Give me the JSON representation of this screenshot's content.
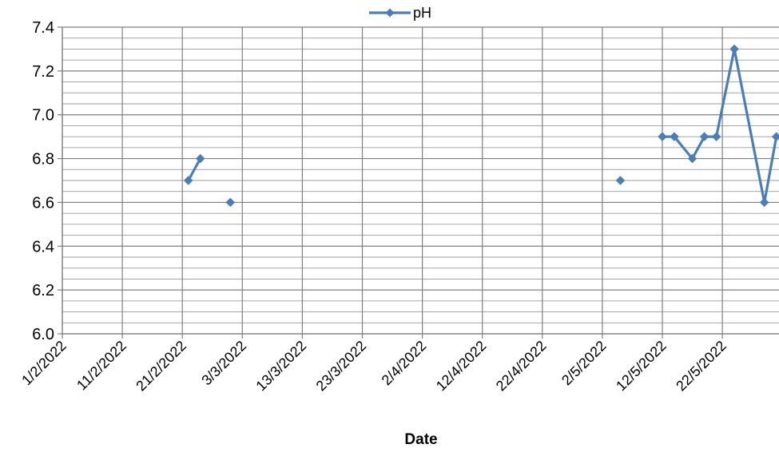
{
  "chart_data": {
    "type": "line",
    "title": "",
    "xlabel": "Date",
    "ylabel": "",
    "ylim": [
      6.0,
      7.4
    ],
    "y_ticks": [
      "6.0",
      "6.2",
      "6.4",
      "6.6",
      "6.8",
      "7.0",
      "7.2",
      "7.4"
    ],
    "x_tick_labels": [
      "1/2/2022",
      "11/2/2022",
      "21/2/2022",
      "3/3/2022",
      "13/3/2022",
      "23/3/2022",
      "2/4/2022",
      "12/4/2022",
      "22/4/2022",
      "2/5/2022",
      "12/5/2022",
      "22/5/2022"
    ],
    "x_tick_dates": [
      "2022-02-01",
      "2022-02-11",
      "2022-02-21",
      "2022-03-03",
      "2022-03-13",
      "2022-03-23",
      "2022-04-02",
      "2022-04-12",
      "2022-04-22",
      "2022-05-02",
      "2022-05-12",
      "2022-05-22"
    ],
    "xlim": [
      "2022-02-01",
      "2022-05-31"
    ],
    "grid": true,
    "legend_position": "top-center",
    "series": [
      {
        "name": "pH",
        "color": "#4a7ebb",
        "marker": "diamond",
        "points": [
          {
            "x": "2022-02-22",
            "y": 6.7
          },
          {
            "x": "2022-02-24",
            "y": 6.8
          },
          {
            "x": null,
            "y": null
          },
          {
            "x": "2022-03-01",
            "y": 6.6
          },
          {
            "x": null,
            "y": null
          },
          {
            "x": "2022-05-05",
            "y": 6.7
          },
          {
            "x": null,
            "y": null
          },
          {
            "x": "2022-05-12",
            "y": 6.9
          },
          {
            "x": "2022-05-14",
            "y": 6.9
          },
          {
            "x": "2022-05-17",
            "y": 6.8
          },
          {
            "x": "2022-05-19",
            "y": 6.9
          },
          {
            "x": "2022-05-21",
            "y": 6.9
          },
          {
            "x": "2022-05-24",
            "y": 7.3
          },
          {
            "x": "2022-05-29",
            "y": 6.6
          },
          {
            "x": "2022-05-31",
            "y": 6.9
          }
        ]
      }
    ]
  }
}
